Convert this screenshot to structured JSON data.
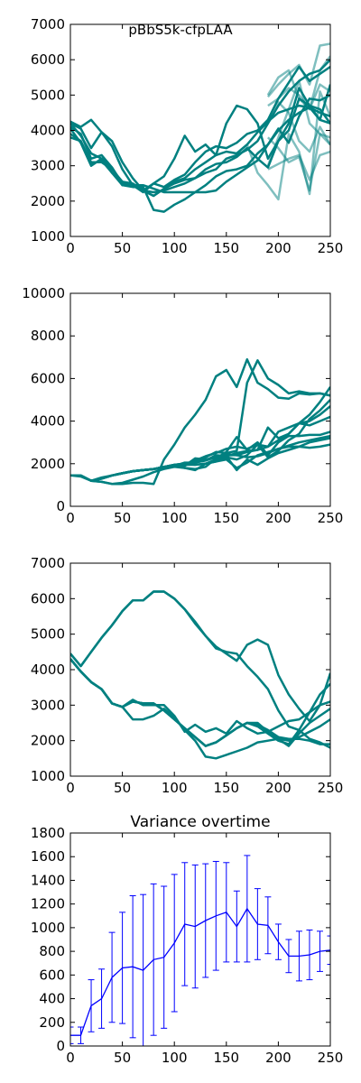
{
  "figure_title": "pBbS5k-cfpLAA",
  "colors": {
    "teal": "#008080",
    "blue": "#0000ff",
    "axis": "#000000"
  },
  "chart_data": [
    {
      "type": "line",
      "title": "",
      "xlabel": "",
      "ylabel": "",
      "xlim": [
        0,
        250
      ],
      "ylim": [
        1000,
        7000
      ],
      "xticks": [
        0,
        50,
        100,
        150,
        200,
        250
      ],
      "yticks": [
        1000,
        2000,
        3000,
        4000,
        5000,
        6000,
        7000
      ],
      "x": [
        0,
        10,
        20,
        30,
        40,
        50,
        60,
        70,
        80,
        90,
        100,
        110,
        120,
        130,
        140,
        150,
        160,
        170,
        180,
        190,
        200,
        210,
        220,
        230,
        240,
        250
      ],
      "series": [
        {
          "values": [
            4250,
            4100,
            4300,
            3950,
            3700,
            3100,
            2650,
            2300,
            2150,
            2350,
            2550,
            2650,
            2900,
            3100,
            3300,
            3400,
            3350,
            3600,
            3950,
            4250,
            4500,
            4600,
            4700,
            4650,
            4500,
            4400
          ]
        },
        {
          "values": [
            4200,
            4050,
            3500,
            3950,
            3550,
            2900,
            2450,
            2250,
            2500,
            2400,
            2600,
            2750,
            3100,
            3400,
            3550,
            3500,
            3650,
            3900,
            4000,
            4300,
            4900,
            5350,
            5800,
            5400,
            5600,
            5800
          ]
        },
        {
          "values": [
            3800,
            3700,
            3050,
            3150,
            2800,
            2450,
            2400,
            2400,
            1750,
            1700,
            1900,
            2050,
            2250,
            2450,
            2700,
            2850,
            2900,
            3000,
            3350,
            3600,
            4000,
            4300,
            4500,
            4650,
            4300,
            4200
          ]
        },
        {
          "values": [
            4050,
            3650,
            3000,
            3200,
            2950,
            2450,
            2450,
            2300,
            2500,
            2700,
            3200,
            3850,
            3400,
            3600,
            3300,
            4200,
            4700,
            4600,
            4200,
            3200,
            3700,
            4200,
            5200,
            4700,
            4300,
            5300
          ]
        },
        {
          "values": [
            4200,
            3850,
            3350,
            3200,
            2800,
            2500,
            2450,
            2450,
            2350,
            2250,
            2250,
            2250,
            2250,
            2250,
            2300,
            2550,
            2750,
            2950,
            3150,
            3600,
            4050,
            3650,
            4400,
            4900,
            4850,
            5000
          ]
        },
        {
          "values": [
            3900,
            3700,
            3100,
            3100,
            2900,
            2550,
            2500,
            2300,
            2150,
            2350,
            2500,
            2600,
            2650,
            2900,
            3050,
            3100,
            3250,
            3500,
            3200,
            2950,
            3700,
            4000,
            4900,
            4700,
            4600,
            4200
          ]
        },
        {
          "values": [
            4100,
            3900,
            3200,
            3300,
            2950,
            2500,
            2450,
            2300,
            2250,
            2300,
            2400,
            2500,
            2650,
            2800,
            2900,
            3200,
            3300,
            3450,
            3700,
            4200,
            4700,
            5100,
            5400,
            5600,
            5700,
            6000
          ]
        }
      ],
      "faded_series": [
        {
          "x": [
            190,
            200,
            210,
            220,
            230,
            240,
            250
          ],
          "values": [
            3800,
            3500,
            3100,
            3250,
            2300,
            3900,
            3800
          ]
        },
        {
          "x": [
            190,
            200,
            210,
            220,
            230,
            240,
            250
          ],
          "values": [
            4950,
            5300,
            5600,
            5850,
            5300,
            6400,
            6450
          ]
        },
        {
          "x": [
            190,
            200,
            210,
            220,
            230,
            240,
            250
          ],
          "values": [
            4300,
            4800,
            4500,
            3700,
            3400,
            4100,
            3600
          ]
        },
        {
          "x": [
            160,
            170,
            180,
            190,
            200,
            210,
            220,
            230,
            240,
            250
          ],
          "values": [
            3350,
            3600,
            2800,
            2450,
            2050,
            3900,
            3400,
            2200,
            5100,
            4400
          ]
        },
        {
          "x": [
            190,
            200,
            210,
            220,
            230,
            240,
            250
          ],
          "values": [
            5000,
            5500,
            5700,
            4900,
            4600,
            5300,
            5100
          ]
        },
        {
          "x": [
            190,
            200,
            210,
            220,
            230,
            240,
            250
          ],
          "values": [
            3000,
            3800,
            4600,
            5400,
            4200,
            3900,
            3600
          ]
        },
        {
          "x": [
            190,
            200,
            210,
            220,
            230,
            240,
            250
          ],
          "values": [
            2900,
            3050,
            3200,
            3300,
            2600,
            3300,
            3400
          ]
        },
        {
          "x": [
            190,
            200,
            210,
            220,
            230,
            240,
            250
          ],
          "values": [
            4700,
            4900,
            5200,
            5000,
            4600,
            5700,
            6100
          ]
        }
      ]
    },
    {
      "type": "line",
      "title": "",
      "xlabel": "",
      "ylabel": "",
      "xlim": [
        0,
        250
      ],
      "ylim": [
        0,
        10000
      ],
      "xticks": [
        0,
        50,
        100,
        150,
        200,
        250
      ],
      "yticks": [
        0,
        2000,
        4000,
        6000,
        8000,
        10000
      ],
      "x": [
        0,
        10,
        20,
        30,
        40,
        50,
        60,
        70,
        80,
        90,
        100,
        110,
        120,
        130,
        140,
        150,
        160,
        170,
        180,
        190,
        200,
        210,
        220,
        230,
        240,
        250
      ],
      "series": [
        {
          "values": [
            1450,
            1400,
            1200,
            1150,
            1050,
            1050,
            1100,
            1100,
            1050,
            2200,
            2900,
            3700,
            4300,
            5000,
            6100,
            6400,
            5600,
            6900,
            5800,
            5500,
            5100,
            5050,
            5300,
            5250,
            5300,
            5200
          ]
        },
        {
          "values": [
            1450,
            1450,
            1200,
            1300,
            1450,
            1550,
            1650,
            1700,
            1750,
            1800,
            1900,
            2050,
            2050,
            2300,
            2550,
            2500,
            2600,
            5800,
            6850,
            6000,
            5700,
            5300,
            5400,
            5300,
            5300,
            5200
          ]
        },
        {
          "values": [
            1450,
            1450,
            1200,
            1350,
            1450,
            1550,
            1650,
            1700,
            1750,
            1850,
            1950,
            2000,
            2050,
            2150,
            2300,
            2450,
            2400,
            2550,
            2650,
            2800,
            3100,
            3400,
            3900,
            4300,
            4900,
            5600
          ]
        },
        {
          "values": [
            1450,
            1450,
            1200,
            1300,
            1450,
            1550,
            1650,
            1700,
            1750,
            1800,
            1900,
            1950,
            1950,
            2000,
            2200,
            2350,
            2500,
            2600,
            2650,
            3700,
            3200,
            3400,
            3900,
            4000,
            4300,
            4700
          ]
        },
        {
          "values": [
            1450,
            1450,
            1200,
            1150,
            1050,
            1100,
            1250,
            1400,
            1600,
            1750,
            1850,
            1800,
            1750,
            1850,
            2250,
            2550,
            3250,
            2650,
            3000,
            2400,
            3000,
            3300,
            3300,
            3350,
            3350,
            3500
          ]
        },
        {
          "values": [
            1450,
            1450,
            1200,
            1300,
            1450,
            1550,
            1650,
            1700,
            1750,
            1850,
            1900,
            1800,
            1700,
            2000,
            2100,
            2200,
            1800,
            2050,
            2400,
            2550,
            2700,
            2850,
            3000,
            3100,
            3200,
            3300
          ]
        },
        {
          "values": [
            1450,
            1450,
            1200,
            1300,
            1450,
            1550,
            1650,
            1700,
            1750,
            1850,
            1900,
            1900,
            2250,
            2200,
            2300,
            2400,
            2400,
            2300,
            2350,
            2500,
            2700,
            2800,
            2800,
            2750,
            2800,
            2900
          ]
        },
        {
          "values": [
            1450,
            1450,
            1200,
            1300,
            1450,
            1550,
            1650,
            1700,
            1750,
            1850,
            1950,
            2000,
            2100,
            2150,
            2400,
            2350,
            1700,
            2200,
            1950,
            2250,
            2500,
            2650,
            2800,
            3000,
            3100,
            3200
          ]
        },
        {
          "values": [
            1450,
            1450,
            1200,
            1300,
            1450,
            1550,
            1650,
            1700,
            1750,
            1850,
            1950,
            2000,
            1950,
            2000,
            2100,
            2300,
            2200,
            2400,
            2900,
            2300,
            2600,
            3100,
            3400,
            4100,
            4500,
            5000
          ]
        },
        {
          "values": [
            1450,
            1450,
            1200,
            1300,
            1450,
            1550,
            1650,
            1700,
            1750,
            1850,
            1900,
            1900,
            2150,
            2350,
            2500,
            2700,
            2800,
            2700,
            2900,
            2800,
            3500,
            3700,
            3900,
            3800,
            4000,
            4200
          ]
        }
      ]
    },
    {
      "type": "line",
      "title": "",
      "xlabel": "",
      "ylabel": "",
      "xlim": [
        0,
        250
      ],
      "ylim": [
        1000,
        7000
      ],
      "xticks": [
        0,
        50,
        100,
        150,
        200,
        250
      ],
      "yticks": [
        1000,
        2000,
        3000,
        4000,
        5000,
        6000,
        7000
      ],
      "x": [
        0,
        10,
        20,
        30,
        40,
        50,
        60,
        70,
        80,
        90,
        100,
        110,
        120,
        130,
        140,
        150,
        160,
        170,
        180,
        190,
        200,
        210,
        220,
        230,
        240,
        250
      ],
      "series": [
        {
          "values": [
            4450,
            4100,
            4500,
            4900,
            5250,
            5650,
            5950,
            5950,
            6200,
            6200,
            6000,
            5700,
            5350,
            4950,
            4650,
            4450,
            4250,
            4700,
            4850,
            4700,
            3850,
            3300,
            2900,
            2550,
            3000,
            3900
          ]
        },
        {
          "values": [
            4450,
            4100,
            4500,
            4900,
            5250,
            5650,
            5950,
            5950,
            6200,
            6200,
            6000,
            5700,
            5300,
            4950,
            4600,
            4500,
            4450,
            4100,
            3800,
            3450,
            2850,
            2400,
            2300,
            2050,
            1950,
            1800
          ]
        },
        {
          "values": [
            4300,
            3950,
            3650,
            3450,
            3050,
            2950,
            3150,
            3000,
            3000,
            3000,
            2700,
            2250,
            2450,
            2250,
            2350,
            2200,
            2550,
            2350,
            2200,
            2250,
            2400,
            2550,
            2600,
            2800,
            3000,
            3100
          ]
        },
        {
          "values": [
            4300,
            3950,
            3650,
            3450,
            3050,
            2950,
            2600,
            2600,
            2700,
            2900,
            2650,
            2300,
            2000,
            1550,
            1500,
            1600,
            1700,
            1800,
            1950,
            2000,
            2050,
            1850,
            2200,
            2500,
            2700,
            2900
          ]
        },
        {
          "values": [
            4300,
            3950,
            3650,
            3450,
            3050,
            2950,
            3100,
            3050,
            3050,
            2850,
            2600,
            2350,
            2100,
            1850,
            1950,
            2150,
            2350,
            2500,
            2500,
            2250,
            2050,
            2000,
            2100,
            2250,
            2400,
            2600
          ]
        },
        {
          "values": [
            4300,
            3950,
            3650,
            3450,
            3050,
            2950,
            3100,
            3050,
            3050,
            2850,
            2600,
            2350,
            2100,
            1850,
            1950,
            2150,
            2350,
            2500,
            2400,
            2200,
            2000,
            1900,
            2300,
            2800,
            3300,
            3600
          ]
        },
        {
          "values": [
            4300,
            3950,
            3650,
            3450,
            3050,
            2950,
            3100,
            3050,
            3050,
            2850,
            2600,
            2350,
            2100,
            1850,
            1950,
            2150,
            2350,
            2500,
            2450,
            2300,
            2100,
            2050,
            2050,
            2000,
            1900,
            1900
          ]
        }
      ]
    },
    {
      "type": "line",
      "title": "Variance overtime",
      "xlabel": "",
      "ylabel": "",
      "xlim": [
        0,
        250
      ],
      "ylim": [
        0,
        1800
      ],
      "xticks": [
        0,
        50,
        100,
        150,
        200,
        250
      ],
      "yticks": [
        0,
        200,
        400,
        600,
        800,
        1000,
        1200,
        1400,
        1600,
        1800
      ],
      "x": [
        0,
        10,
        20,
        30,
        40,
        50,
        60,
        70,
        80,
        90,
        100,
        110,
        120,
        130,
        140,
        150,
        160,
        170,
        180,
        190,
        200,
        210,
        220,
        230,
        240,
        250
      ],
      "values": [
        90,
        90,
        340,
        400,
        580,
        660,
        670,
        640,
        730,
        750,
        870,
        1030,
        1010,
        1060,
        1100,
        1130,
        1010,
        1160,
        1030,
        1020,
        880,
        760,
        760,
        770,
        800,
        810
      ],
      "errors": [
        70,
        70,
        220,
        250,
        380,
        470,
        600,
        640,
        640,
        600,
        580,
        520,
        520,
        480,
        460,
        420,
        300,
        450,
        300,
        240,
        150,
        140,
        210,
        210,
        170,
        120
      ]
    }
  ]
}
